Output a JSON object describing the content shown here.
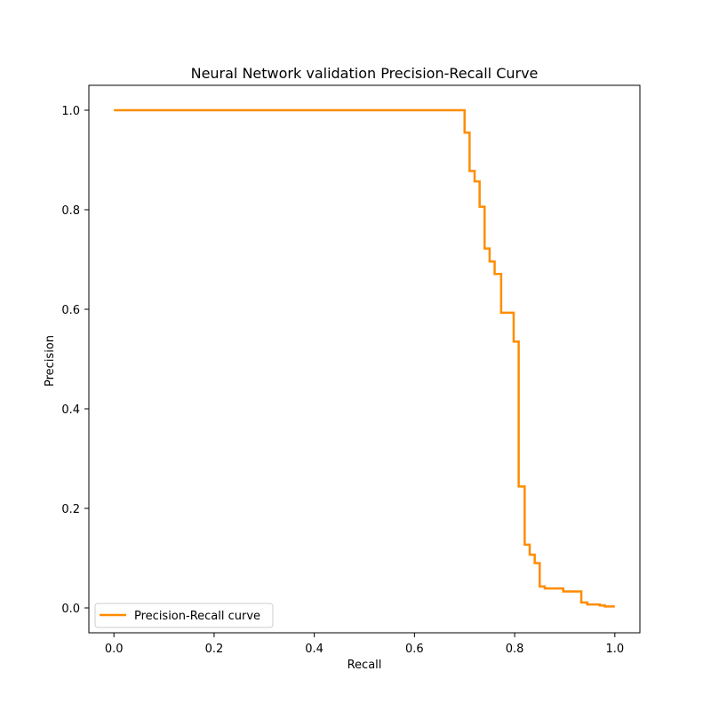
{
  "chart_data": {
    "type": "line",
    "step": true,
    "title": "Neural Network validation Precision-Recall Curve",
    "xlabel": "Recall",
    "ylabel": "Precision",
    "xlim": [
      -0.05,
      1.05
    ],
    "ylim": [
      -0.05,
      1.05
    ],
    "xticks": [
      0.0,
      0.2,
      0.4,
      0.6,
      0.8,
      1.0
    ],
    "xtick_labels": [
      "0.0",
      "0.2",
      "0.4",
      "0.6",
      "0.8",
      "1.0"
    ],
    "yticks": [
      0.0,
      0.2,
      0.4,
      0.6,
      0.8,
      1.0
    ],
    "ytick_labels": [
      "0.0",
      "0.2",
      "0.4",
      "0.6",
      "0.8",
      "1.0"
    ],
    "grid": false,
    "legend_position": "lower-left",
    "series": [
      {
        "name": "Precision-Recall curve",
        "color": "#ff8c00",
        "points": [
          [
            0.0,
            1.0
          ],
          [
            0.7,
            1.0
          ],
          [
            0.7,
            0.955
          ],
          [
            0.71,
            0.955
          ],
          [
            0.71,
            0.878
          ],
          [
            0.72,
            0.878
          ],
          [
            0.72,
            0.857
          ],
          [
            0.73,
            0.857
          ],
          [
            0.73,
            0.806
          ],
          [
            0.74,
            0.806
          ],
          [
            0.74,
            0.722
          ],
          [
            0.75,
            0.722
          ],
          [
            0.75,
            0.696
          ],
          [
            0.76,
            0.696
          ],
          [
            0.76,
            0.671
          ],
          [
            0.773,
            0.671
          ],
          [
            0.773,
            0.593
          ],
          [
            0.798,
            0.593
          ],
          [
            0.798,
            0.535
          ],
          [
            0.808,
            0.535
          ],
          [
            0.808,
            0.244
          ],
          [
            0.82,
            0.244
          ],
          [
            0.82,
            0.127
          ],
          [
            0.83,
            0.127
          ],
          [
            0.83,
            0.107
          ],
          [
            0.84,
            0.107
          ],
          [
            0.84,
            0.09
          ],
          [
            0.85,
            0.09
          ],
          [
            0.85,
            0.043
          ],
          [
            0.86,
            0.043
          ],
          [
            0.86,
            0.039
          ],
          [
            0.897,
            0.039
          ],
          [
            0.897,
            0.033
          ],
          [
            0.933,
            0.033
          ],
          [
            0.933,
            0.011
          ],
          [
            0.945,
            0.011
          ],
          [
            0.945,
            0.007
          ],
          [
            0.97,
            0.007
          ],
          [
            0.97,
            0.005
          ],
          [
            0.98,
            0.005
          ],
          [
            0.98,
            0.003
          ],
          [
            1.0,
            0.003
          ]
        ]
      }
    ]
  }
}
